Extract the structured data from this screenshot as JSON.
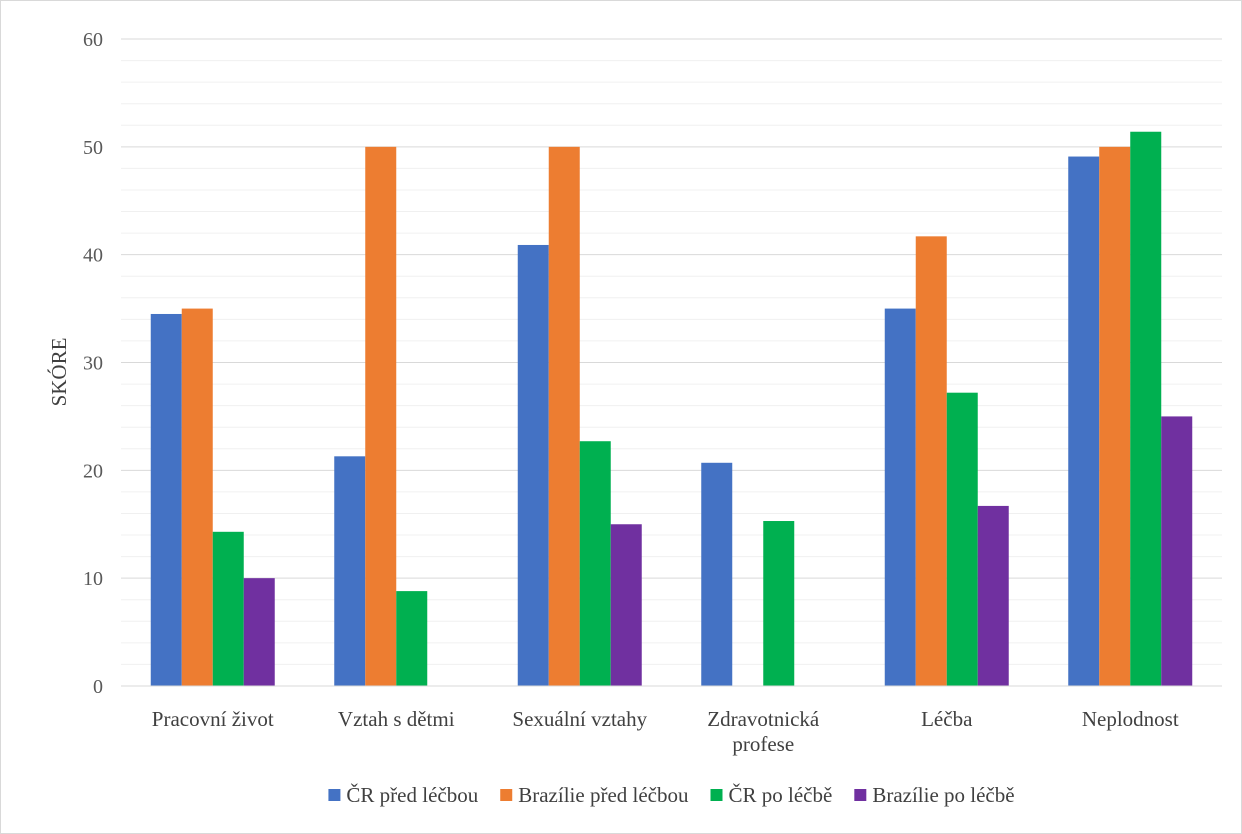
{
  "chart_data": {
    "type": "bar",
    "title": "",
    "xlabel": "",
    "ylabel": "SKÓRE",
    "ylim": [
      0,
      60
    ],
    "yticks": [
      0,
      10,
      20,
      30,
      40,
      50,
      60
    ],
    "minor_grid_step": 2,
    "grid": true,
    "legend_position": "bottom",
    "categories": [
      [
        "Pracovní život"
      ],
      [
        "Vztah s dětmi"
      ],
      [
        "Sexuální vztahy"
      ],
      [
        "Zdravotnická",
        "profese"
      ],
      [
        "Léčba"
      ],
      [
        "Neplodnost"
      ]
    ],
    "series": [
      {
        "name": "ČR před léčbou",
        "color": "#4472C4",
        "values": [
          34.5,
          21.3,
          40.9,
          20.7,
          35.0,
          49.1
        ]
      },
      {
        "name": "Brazílie před léčbou",
        "color": "#ED7D31",
        "values": [
          35.0,
          50.0,
          50.0,
          null,
          41.7,
          50.0
        ]
      },
      {
        "name": "ČR po léčbě",
        "color": "#00B050",
        "values": [
          14.3,
          8.8,
          22.7,
          15.3,
          27.2,
          51.4
        ]
      },
      {
        "name": "Brazílie po léčbě",
        "color": "#7030A0",
        "values": [
          10.0,
          null,
          15.0,
          null,
          16.7,
          25.0
        ]
      }
    ]
  }
}
